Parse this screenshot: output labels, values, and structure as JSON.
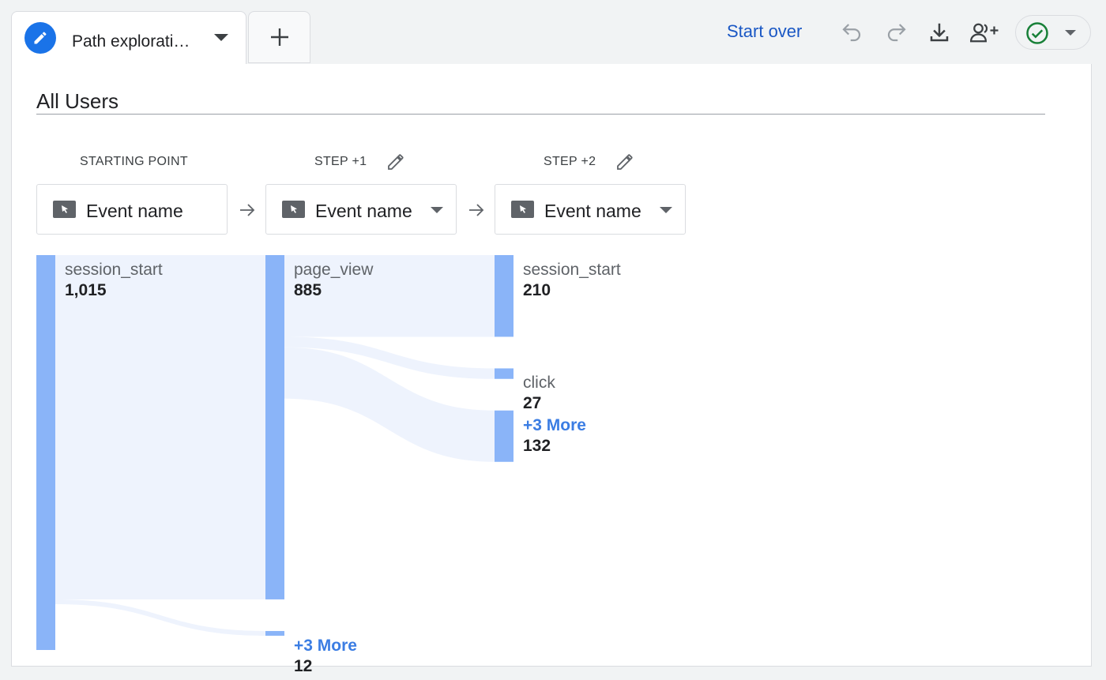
{
  "tabs": {
    "active_label": "Path explorati…",
    "add_tab_label": "+"
  },
  "toolbar": {
    "start_over_label": "Start over",
    "undo_icon": "undo-icon",
    "redo_icon": "redo-icon",
    "download_icon": "download-icon",
    "share_icon": "add-person-icon",
    "status_icon": "check-circle-icon"
  },
  "segment": {
    "title": "All Users"
  },
  "steps": [
    {
      "header": "STARTING POINT",
      "dimension": "Event name",
      "editable": false
    },
    {
      "header": "STEP +1",
      "dimension": "Event name",
      "editable": true
    },
    {
      "header": "STEP +2",
      "dimension": "Event name",
      "editable": true
    }
  ],
  "columns": [
    {
      "nodes": [
        {
          "name": "session_start",
          "count": "1,015",
          "value": 1015,
          "more": false
        }
      ]
    },
    {
      "nodes": [
        {
          "name": "page_view",
          "count": "885",
          "value": 885,
          "more": false
        },
        {
          "name": "+3 More",
          "count": "12",
          "value": 12,
          "more": true
        }
      ]
    },
    {
      "nodes": [
        {
          "name": "session_start",
          "count": "210",
          "value": 210,
          "more": false
        },
        {
          "name": "click",
          "count": "27",
          "value": 27,
          "more": false
        },
        {
          "name": "+3 More",
          "count": "132",
          "value": 132,
          "more": true
        }
      ]
    }
  ],
  "colors": {
    "node_bar": "#8ab4f8",
    "flow_fill": "#eef3fd",
    "more_link": "#3b7de3",
    "accent": "#1a73e8"
  }
}
